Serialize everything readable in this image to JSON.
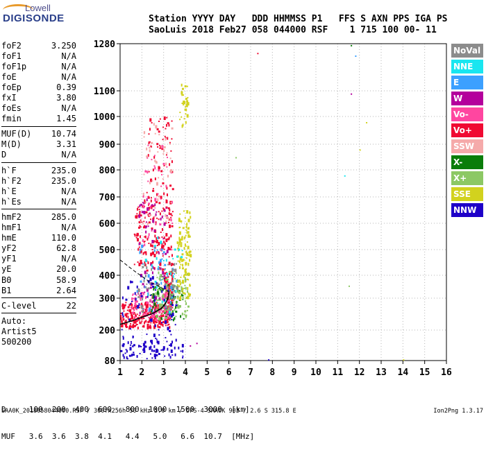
{
  "logo": {
    "top": "Lowell",
    "main": "DIGISONDE"
  },
  "header": {
    "row1": "Station YYYY DAY   DDD HHMMSS P1   FFS S AXN PPS IGA PS",
    "row2": "SaoLuis 2018 Feb27 058 044000 RSF    1 715 100 00- 11"
  },
  "params": [
    {
      "name": "foF2",
      "value": "3.250"
    },
    {
      "name": "foF1",
      "value": "N/A"
    },
    {
      "name": "foF1p",
      "value": "N/A"
    },
    {
      "name": "foE",
      "value": "N/A"
    },
    {
      "name": "foEp",
      "value": "0.39"
    },
    {
      "name": "fxI",
      "value": "3.80"
    },
    {
      "name": "foEs",
      "value": "N/A"
    },
    {
      "name": "fmin",
      "value": "1.45"
    },
    {
      "sep": true
    },
    {
      "name": "MUF(D)",
      "value": "10.74"
    },
    {
      "name": "M(D)",
      "value": "3.31"
    },
    {
      "name": "D",
      "value": "N/A"
    },
    {
      "sep": true
    },
    {
      "name": "h`F",
      "value": "235.0"
    },
    {
      "name": "h`F2",
      "value": "235.0"
    },
    {
      "name": "h`E",
      "value": "N/A"
    },
    {
      "name": "h`Es",
      "value": "N/A"
    },
    {
      "sep": true
    },
    {
      "name": "hmF2",
      "value": "285.0"
    },
    {
      "name": "hmF1",
      "value": "N/A"
    },
    {
      "name": "hmE",
      "value": "110.0"
    },
    {
      "name": "yF2",
      "value": "62.8"
    },
    {
      "name": "yF1",
      "value": "N/A"
    },
    {
      "name": "yE",
      "value": "20.0"
    },
    {
      "name": "B0",
      "value": "58.9"
    },
    {
      "name": "B1",
      "value": "2.64"
    },
    {
      "sep": true
    },
    {
      "name": "C-level",
      "value": "22"
    },
    {
      "sep": true
    },
    {
      "name": "Auto:",
      "value": ""
    },
    {
      "name": "Artist5",
      "value": ""
    },
    {
      "name": "500200",
      "value": ""
    }
  ],
  "legend": [
    {
      "label": "NoVal",
      "color": "#8c8c8c"
    },
    {
      "label": "NNE",
      "color": "#19e6f0"
    },
    {
      "label": "E",
      "color": "#3ca0ff"
    },
    {
      "label": "W",
      "color": "#b4009c"
    },
    {
      "label": "Vo-",
      "color": "#ff46a0"
    },
    {
      "label": "Vo+",
      "color": "#f00a32"
    },
    {
      "label": "SSW",
      "color": "#f5aaaa"
    },
    {
      "label": "X-",
      "color": "#0a7d0a"
    },
    {
      "label": "X+",
      "color": "#8cc864"
    },
    {
      "label": "SSE",
      "color": "#d2d21e"
    },
    {
      "label": "NNW",
      "color": "#1e00c8"
    }
  ],
  "chart_data": {
    "type": "scatter",
    "title": "",
    "xlabel": "",
    "ylabel": "",
    "xlim": [
      1,
      16
    ],
    "ylim": [
      80,
      1280
    ],
    "x_ticks": [
      1,
      2,
      3,
      4,
      5,
      6,
      7,
      8,
      9,
      10,
      11,
      12,
      13,
      14,
      15,
      16
    ],
    "y_ticks": [
      80,
      200,
      300,
      400,
      500,
      600,
      700,
      800,
      900,
      1000,
      1100,
      1280
    ],
    "grid": true,
    "clusters": [
      {
        "series": "Vo+",
        "x_range": [
          1.0,
          3.3
        ],
        "y_range": [
          210,
          290
        ],
        "count": 260
      },
      {
        "series": "Vo+",
        "x_range": [
          3.0,
          3.4
        ],
        "y_range": [
          260,
          420
        ],
        "count": 90
      },
      {
        "series": "Vo+",
        "x_range": [
          1.6,
          3.4
        ],
        "y_range": [
          420,
          700
        ],
        "count": 170
      },
      {
        "series": "Vo+",
        "x_range": [
          2.2,
          3.4
        ],
        "y_range": [
          700,
          1000
        ],
        "count": 60
      },
      {
        "series": "Vo-",
        "x_range": [
          1.5,
          3.3
        ],
        "y_range": [
          230,
          330
        ],
        "count": 120
      },
      {
        "series": "Vo-",
        "x_range": [
          2.0,
          3.4
        ],
        "y_range": [
          500,
          900
        ],
        "count": 40
      },
      {
        "series": "W",
        "x_range": [
          1.8,
          3.2
        ],
        "y_range": [
          250,
          700
        ],
        "count": 70
      },
      {
        "series": "X-",
        "x_range": [
          2.4,
          3.9
        ],
        "y_range": [
          230,
          360
        ],
        "count": 70
      },
      {
        "series": "X+",
        "x_range": [
          2.6,
          4.1
        ],
        "y_range": [
          240,
          420
        ],
        "count": 110
      },
      {
        "series": "SSE",
        "x_range": [
          3.6,
          4.2
        ],
        "y_range": [
          300,
          650
        ],
        "count": 110
      },
      {
        "series": "SSE",
        "x_range": [
          3.7,
          4.1
        ],
        "y_range": [
          950,
          1130
        ],
        "count": 30
      },
      {
        "series": "SSW",
        "x_range": [
          2.0,
          3.4
        ],
        "y_range": [
          600,
          1000
        ],
        "count": 50
      },
      {
        "series": "E",
        "x_range": [
          1.7,
          3.6
        ],
        "y_range": [
          260,
          520
        ],
        "count": 40
      },
      {
        "series": "NNE",
        "x_range": [
          1.9,
          3.9
        ],
        "y_range": [
          260,
          550
        ],
        "count": 30
      },
      {
        "series": "NNW",
        "x_range": [
          1.0,
          3.7
        ],
        "y_range": [
          100,
          400
        ],
        "count": 90
      },
      {
        "series": "NNW",
        "x_range": [
          1.1,
          3.9
        ],
        "y_range": [
          90,
          160
        ],
        "count": 60
      },
      {
        "series": "NoVal",
        "x_range": [
          1.8,
          3.6
        ],
        "y_range": [
          260,
          450
        ],
        "count": 60
      }
    ],
    "isolated_points": [
      {
        "series": "Vo+",
        "x": 7.3,
        "y": 1245
      },
      {
        "series": "X-",
        "x": 11.6,
        "y": 1275
      },
      {
        "series": "E",
        "x": 11.8,
        "y": 1235
      },
      {
        "series": "W",
        "x": 11.6,
        "y": 1090
      },
      {
        "series": "SSE",
        "x": 12.3,
        "y": 980
      },
      {
        "series": "SSE",
        "x": 12.0,
        "y": 880
      },
      {
        "series": "X+",
        "x": 6.3,
        "y": 850
      },
      {
        "series": "NNE",
        "x": 11.3,
        "y": 780
      },
      {
        "series": "X+",
        "x": 11.5,
        "y": 355
      },
      {
        "series": "NNW",
        "x": 7.8,
        "y": 85
      },
      {
        "series": "SSE",
        "x": 14.0,
        "y": 85
      },
      {
        "series": "W",
        "x": 4.5,
        "y": 150
      },
      {
        "series": "W",
        "x": 4.2,
        "y": 140
      }
    ],
    "profile_curve": [
      {
        "x": 1.0,
        "y": 218
      },
      {
        "x": 1.5,
        "y": 228
      },
      {
        "x": 2.0,
        "y": 240
      },
      {
        "x": 2.5,
        "y": 252
      },
      {
        "x": 2.9,
        "y": 268
      },
      {
        "x": 3.1,
        "y": 285
      },
      {
        "x": 3.2,
        "y": 300
      },
      {
        "x": 3.25,
        "y": 330
      }
    ],
    "dashed_line": [
      {
        "x": 1.0,
        "y": 460
      },
      {
        "x": 1.6,
        "y": 420
      },
      {
        "x": 2.3,
        "y": 375
      },
      {
        "x": 2.8,
        "y": 350
      },
      {
        "x": 3.2,
        "y": 330
      }
    ]
  },
  "muf_table": {
    "d_row": "D     100  200  400  600   800  1000  1500  3000  [km]",
    "muf_row": "MUF   3.6  3.6  3.8  4.1   4.4   5.0   6.6  10.7  [MHz]"
  },
  "footer": {
    "file": "SAA0K_2018058044000.RSF / 300fx256h 50 kHz 5.0 km / DPS-4 SAA0K 903 / 2.6 S 315.8 E",
    "version": "Ion2Png 1.3.17"
  }
}
